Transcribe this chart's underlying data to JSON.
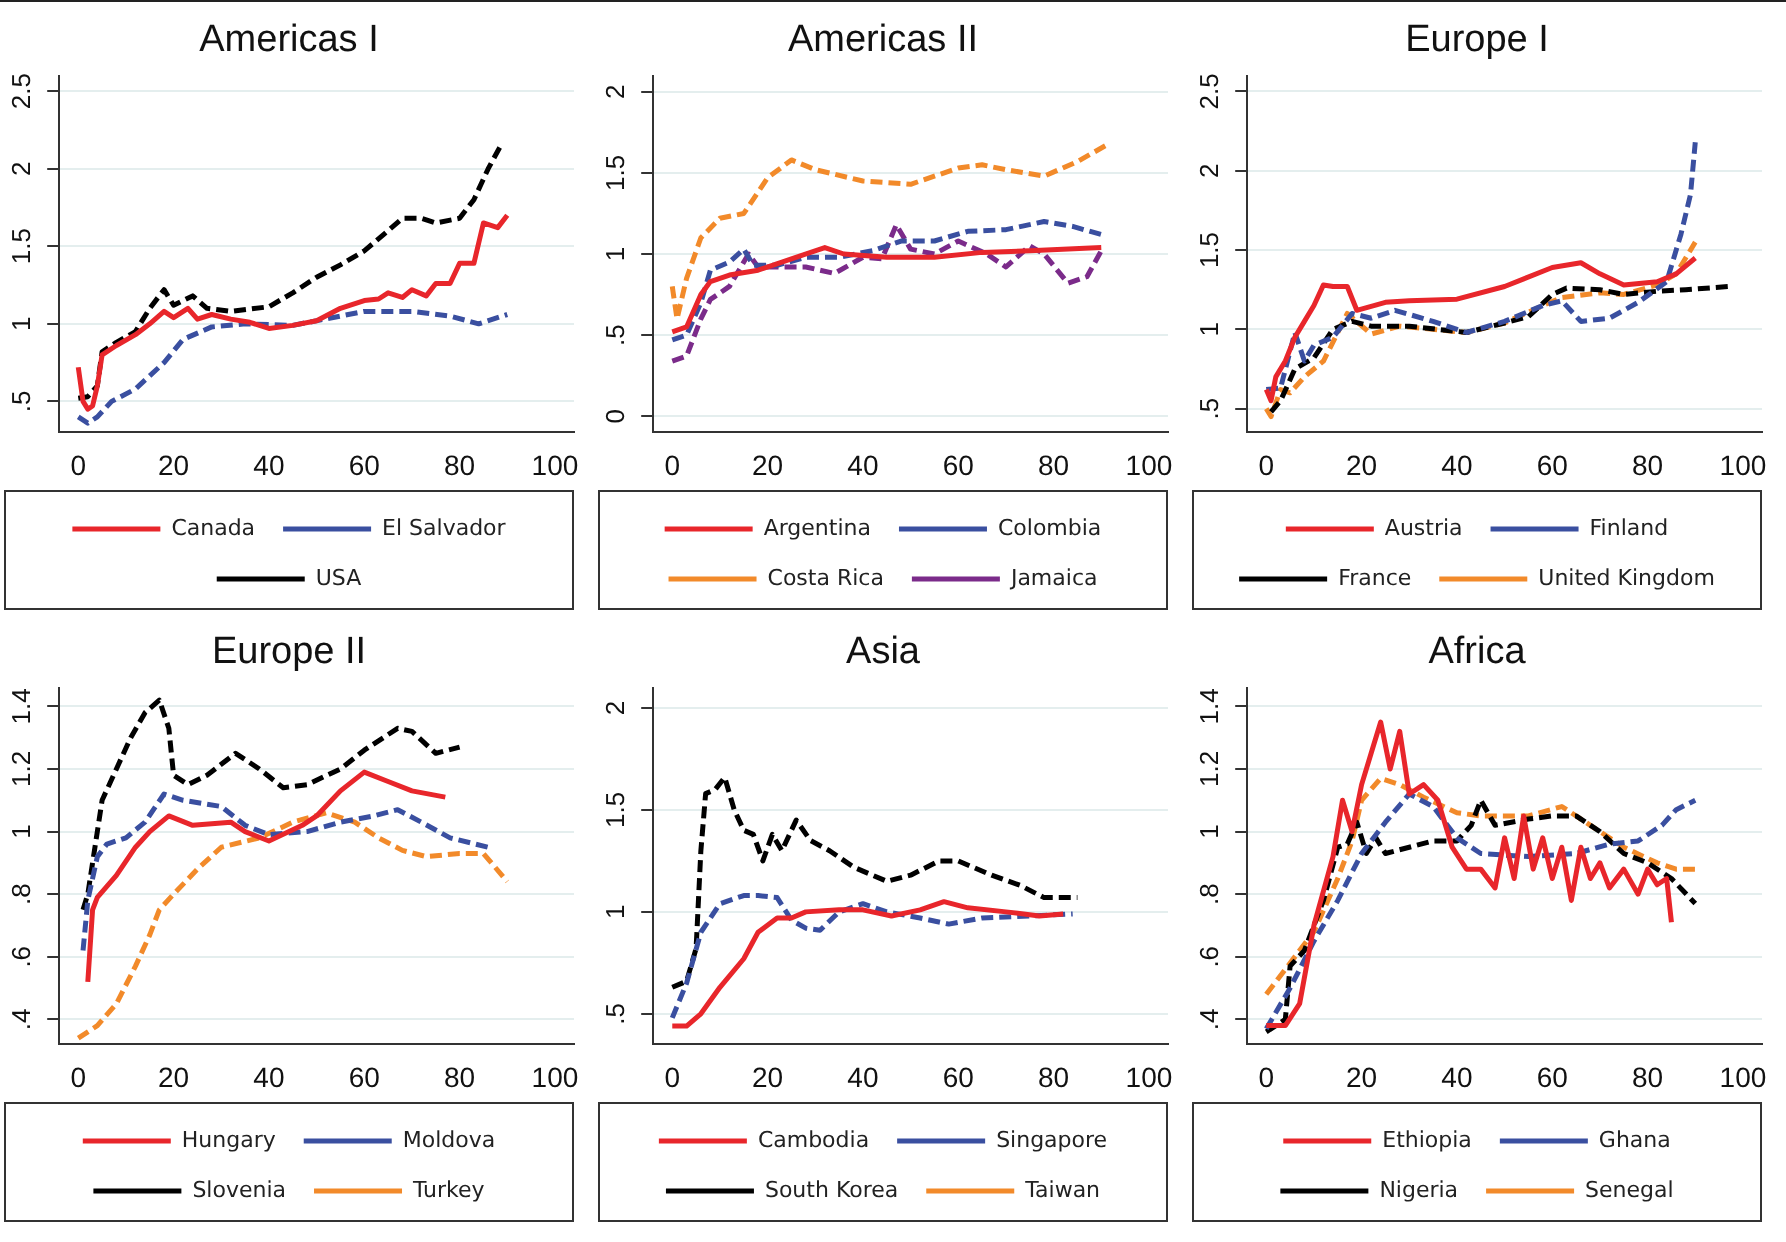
{
  "chart_data": [
    {
      "type": "line",
      "title": "Americas I",
      "xlim": [
        -4,
        104
      ],
      "xticks": [
        0,
        20,
        40,
        60,
        80,
        100
      ],
      "ylim": [
        0.3,
        2.6
      ],
      "yticks": [
        {
          "value": 0.5,
          "label": ".5"
        },
        1,
        1.5,
        2,
        2.5
      ],
      "grid": "y",
      "legend": "bottom",
      "marker": "none",
      "series": [
        {
          "name": "Canada",
          "color": "#e8262b",
          "line_style": "solid",
          "x": [
            0,
            1,
            2,
            3,
            4,
            5,
            8,
            12,
            15,
            18,
            20,
            23,
            25,
            28,
            32,
            36,
            40,
            45,
            50,
            55,
            60,
            63,
            65,
            68,
            70,
            73,
            75,
            78,
            80,
            83,
            85,
            88,
            90
          ],
          "values": [
            0.72,
            0.5,
            0.45,
            0.47,
            0.6,
            0.8,
            0.86,
            0.93,
            1.0,
            1.08,
            1.04,
            1.1,
            1.03,
            1.06,
            1.03,
            1.01,
            0.97,
            0.99,
            1.02,
            1.1,
            1.15,
            1.16,
            1.2,
            1.17,
            1.22,
            1.18,
            1.26,
            1.26,
            1.39,
            1.39,
            1.65,
            1.62,
            1.7
          ]
        },
        {
          "name": "El Salvador",
          "color": "#3a4fa0",
          "line_style": "dashed",
          "x": [
            0,
            2,
            4,
            7,
            12,
            18,
            22,
            28,
            35,
            45,
            55,
            60,
            70,
            78,
            84,
            90
          ],
          "values": [
            0.4,
            0.36,
            0.4,
            0.5,
            0.58,
            0.75,
            0.9,
            0.98,
            1.0,
            0.99,
            1.05,
            1.08,
            1.08,
            1.05,
            1.0,
            1.06
          ]
        },
        {
          "name": "USA",
          "color": "#000000",
          "line_style": "dashed",
          "x": [
            0,
            2,
            4,
            5,
            8,
            12,
            15,
            18,
            20,
            24,
            27,
            32,
            40,
            45,
            50,
            55,
            60,
            65,
            68,
            72,
            75,
            80,
            83,
            86,
            89
          ],
          "values": [
            0.52,
            0.53,
            0.6,
            0.82,
            0.88,
            0.95,
            1.1,
            1.22,
            1.12,
            1.18,
            1.1,
            1.08,
            1.11,
            1.2,
            1.3,
            1.38,
            1.47,
            1.6,
            1.68,
            1.68,
            1.65,
            1.68,
            1.8,
            2.0,
            2.17
          ]
        }
      ]
    },
    {
      "type": "line",
      "title": "Americas II",
      "xlim": [
        -4,
        104
      ],
      "xticks": [
        0,
        20,
        40,
        60,
        80,
        100
      ],
      "ylim": [
        -0.1,
        2.1
      ],
      "yticks": [
        0,
        {
          "value": 0.5,
          "label": ".5"
        },
        1,
        1.5,
        2
      ],
      "grid": "y",
      "legend": "bottom",
      "marker": "none",
      "series": [
        {
          "name": "Argentina",
          "color": "#e8262b",
          "line_style": "solid",
          "x": [
            0,
            3,
            6,
            8,
            12,
            18,
            25,
            32,
            36,
            45,
            55,
            65,
            75,
            90
          ],
          "values": [
            0.52,
            0.55,
            0.75,
            0.83,
            0.87,
            0.9,
            0.97,
            1.04,
            1.0,
            0.98,
            0.98,
            1.01,
            1.02,
            1.04
          ]
        },
        {
          "name": "Colombia",
          "color": "#3a4fa0",
          "line_style": "dashed",
          "x": [
            0,
            3,
            6,
            8,
            12,
            15,
            17,
            22,
            28,
            35,
            42,
            48,
            55,
            62,
            70,
            78,
            84,
            90
          ],
          "values": [
            0.47,
            0.5,
            0.7,
            0.9,
            0.95,
            1.03,
            0.93,
            0.93,
            0.98,
            0.98,
            1.02,
            1.08,
            1.08,
            1.14,
            1.15,
            1.2,
            1.17,
            1.12
          ]
        },
        {
          "name": "Costa Rica",
          "color": "#f28a2a",
          "line_style": "dashed",
          "x": [
            0,
            1,
            3,
            6,
            10,
            15,
            20,
            25,
            30,
            40,
            50,
            60,
            65,
            70,
            78,
            85,
            91
          ],
          "values": [
            0.8,
            0.6,
            0.85,
            1.1,
            1.22,
            1.25,
            1.47,
            1.58,
            1.52,
            1.45,
            1.43,
            1.53,
            1.55,
            1.52,
            1.48,
            1.57,
            1.67
          ]
        },
        {
          "name": "Jamaica",
          "color": "#7b2b8a",
          "line_style": "dashed",
          "x": [
            0,
            3,
            6,
            8,
            12,
            16,
            18,
            22,
            28,
            34,
            40,
            44,
            47,
            50,
            55,
            60,
            66,
            70,
            75,
            78,
            83,
            87,
            90
          ],
          "values": [
            0.34,
            0.37,
            0.6,
            0.72,
            0.8,
            1.0,
            0.92,
            0.92,
            0.92,
            0.88,
            0.98,
            0.97,
            1.18,
            1.03,
            1.0,
            1.08,
            1.0,
            0.92,
            1.05,
            1.0,
            0.82,
            0.86,
            1.02
          ]
        }
      ]
    },
    {
      "type": "line",
      "title": "Europe I",
      "xlim": [
        -4,
        104
      ],
      "xticks": [
        0,
        20,
        40,
        60,
        80,
        100
      ],
      "ylim": [
        0.35,
        2.6
      ],
      "yticks": [
        {
          "value": 0.5,
          "label": ".5"
        },
        1,
        1.5,
        2,
        2.5
      ],
      "grid": "y",
      "legend": "bottom",
      "marker": "none",
      "series": [
        {
          "name": "Austria",
          "color": "#e8262b",
          "line_style": "solid",
          "x": [
            0,
            1,
            2,
            4,
            6,
            8,
            10,
            12,
            14,
            17,
            19,
            25,
            30,
            40,
            50,
            60,
            66,
            70,
            75,
            82,
            86,
            90
          ],
          "values": [
            0.62,
            0.55,
            0.7,
            0.8,
            0.95,
            1.05,
            1.15,
            1.28,
            1.27,
            1.27,
            1.12,
            1.17,
            1.18,
            1.19,
            1.27,
            1.39,
            1.42,
            1.35,
            1.28,
            1.3,
            1.35,
            1.45
          ]
        },
        {
          "name": "Finland",
          "color": "#3a4fa0",
          "line_style": "dashed",
          "x": [
            0,
            3,
            6,
            8,
            10,
            14,
            18,
            22,
            27,
            35,
            42,
            50,
            58,
            62,
            66,
            72,
            78,
            84,
            87,
            89,
            90
          ],
          "values": [
            0.62,
            0.63,
            0.98,
            0.8,
            0.9,
            0.95,
            1.1,
            1.07,
            1.12,
            1.05,
            0.98,
            1.05,
            1.15,
            1.18,
            1.05,
            1.07,
            1.17,
            1.3,
            1.6,
            1.85,
            2.18
          ]
        },
        {
          "name": "France",
          "color": "#000000",
          "line_style": "dashed",
          "x": [
            1,
            3,
            6,
            10,
            14,
            18,
            22,
            30,
            42,
            50,
            55,
            60,
            63,
            70,
            75,
            82,
            88,
            97
          ],
          "values": [
            0.48,
            0.55,
            0.75,
            0.82,
            1.0,
            1.05,
            1.02,
            1.02,
            0.98,
            1.04,
            1.08,
            1.22,
            1.26,
            1.25,
            1.22,
            1.24,
            1.25,
            1.27
          ]
        },
        {
          "name": "United Kingdom",
          "color": "#f28a2a",
          "line_style": "dashed",
          "x": [
            0,
            1,
            3,
            5,
            8,
            12,
            17,
            22,
            28,
            35,
            42,
            50,
            58,
            62,
            70,
            75,
            82,
            86,
            90
          ],
          "values": [
            0.5,
            0.45,
            0.62,
            0.6,
            0.7,
            0.8,
            1.1,
            0.97,
            1.02,
            1.0,
            0.98,
            1.04,
            1.15,
            1.2,
            1.23,
            1.22,
            1.28,
            1.35,
            1.55
          ]
        }
      ]
    },
    {
      "type": "line",
      "title": "Europe II",
      "xlim": [
        -4,
        104
      ],
      "xticks": [
        0,
        20,
        40,
        60,
        80,
        100
      ],
      "ylim": [
        0.32,
        1.46
      ],
      "yticks": [
        {
          "value": 0.4,
          "label": ".4"
        },
        {
          "value": 0.6,
          "label": ".6"
        },
        {
          "value": 0.8,
          "label": ".8"
        },
        1,
        1.2,
        1.4
      ],
      "grid": "y",
      "legend": "bottom",
      "marker": "none",
      "series": [
        {
          "name": "Hungary",
          "color": "#e8262b",
          "line_style": "solid",
          "x": [
            2,
            3,
            4,
            8,
            12,
            15,
            19,
            24,
            32,
            35,
            40,
            47,
            50,
            55,
            60,
            65,
            70,
            77
          ],
          "values": [
            0.52,
            0.75,
            0.79,
            0.86,
            0.95,
            1.0,
            1.05,
            1.02,
            1.03,
            1.0,
            0.97,
            1.02,
            1.05,
            1.13,
            1.19,
            1.16,
            1.13,
            1.11
          ]
        },
        {
          "name": "Moldova",
          "color": "#3a4fa0",
          "line_style": "dashed",
          "x": [
            1,
            2,
            4,
            6,
            10,
            14,
            18,
            22,
            30,
            35,
            40,
            48,
            55,
            62,
            67,
            72,
            78,
            86
          ],
          "values": [
            0.62,
            0.78,
            0.92,
            0.96,
            0.98,
            1.03,
            1.12,
            1.1,
            1.08,
            1.02,
            0.99,
            1.0,
            1.03,
            1.05,
            1.07,
            1.03,
            0.98,
            0.95
          ]
        },
        {
          "name": "Slovenia",
          "color": "#000000",
          "line_style": "dashed",
          "x": [
            1,
            2,
            3,
            5,
            8,
            11,
            14,
            17,
            19,
            20,
            23,
            27,
            33,
            38,
            43,
            48,
            55,
            60,
            67,
            70,
            75,
            80
          ],
          "values": [
            0.75,
            0.8,
            0.9,
            1.1,
            1.2,
            1.3,
            1.38,
            1.42,
            1.33,
            1.18,
            1.15,
            1.18,
            1.25,
            1.2,
            1.14,
            1.15,
            1.2,
            1.26,
            1.33,
            1.32,
            1.25,
            1.27
          ]
        },
        {
          "name": "Turkey",
          "color": "#f28a2a",
          "line_style": "dashed",
          "x": [
            0,
            4,
            8,
            12,
            15,
            17,
            20,
            25,
            30,
            38,
            45,
            52,
            58,
            63,
            68,
            73,
            80,
            85,
            90
          ],
          "values": [
            0.34,
            0.38,
            0.45,
            0.57,
            0.67,
            0.75,
            0.8,
            0.88,
            0.95,
            0.98,
            1.03,
            1.06,
            1.03,
            0.98,
            0.94,
            0.92,
            0.93,
            0.93,
            0.84
          ]
        }
      ]
    },
    {
      "type": "line",
      "title": "Asia",
      "xlim": [
        -4,
        104
      ],
      "xticks": [
        0,
        20,
        40,
        60,
        80,
        100
      ],
      "ylim": [
        0.35,
        2.1
      ],
      "yticks": [
        {
          "value": 0.5,
          "label": ".5"
        },
        1,
        1.5,
        2
      ],
      "grid": "y",
      "legend": "bottom",
      "marker": "none",
      "series": [
        {
          "name": "Cambodia",
          "color": "#e8262b",
          "line_style": "solid",
          "x": [
            0,
            3,
            6,
            10,
            15,
            18,
            22,
            25,
            28,
            35,
            40,
            46,
            52,
            57,
            62,
            70,
            77,
            82
          ],
          "values": [
            0.44,
            0.44,
            0.5,
            0.63,
            0.77,
            0.9,
            0.97,
            0.97,
            1.0,
            1.01,
            1.01,
            0.98,
            1.01,
            1.05,
            1.02,
            1.0,
            0.98,
            0.99
          ]
        },
        {
          "name": "Singapore",
          "color": "#3a4fa0",
          "line_style": "dashed",
          "x": [
            0,
            3,
            6,
            10,
            15,
            18,
            22,
            25,
            28,
            31,
            35,
            40,
            45,
            52,
            58,
            65,
            75,
            84
          ],
          "values": [
            0.48,
            0.65,
            0.9,
            1.04,
            1.08,
            1.08,
            1.07,
            0.96,
            0.92,
            0.91,
            1.0,
            1.04,
            1.0,
            0.97,
            0.94,
            0.97,
            0.98,
            0.99
          ]
        },
        {
          "name": "South Korea",
          "color": "#000000",
          "line_style": "dashed",
          "x": [
            0,
            3,
            5,
            6,
            7,
            9,
            11,
            13,
            15,
            17,
            19,
            21,
            23,
            26,
            29,
            33,
            38,
            45,
            50,
            56,
            60,
            67,
            73,
            78,
            85
          ],
          "values": [
            0.63,
            0.66,
            0.82,
            1.3,
            1.58,
            1.6,
            1.66,
            1.5,
            1.4,
            1.38,
            1.25,
            1.38,
            1.3,
            1.45,
            1.35,
            1.3,
            1.22,
            1.15,
            1.18,
            1.25,
            1.25,
            1.18,
            1.13,
            1.07,
            1.07
          ]
        },
        {
          "name": "Taiwan",
          "color": "#f28a2a",
          "line_style": "dashed"
        }
      ]
    },
    {
      "type": "line",
      "title": "Africa",
      "xlim": [
        -4,
        104
      ],
      "xticks": [
        0,
        20,
        40,
        60,
        80,
        100
      ],
      "ylim": [
        0.32,
        1.46
      ],
      "yticks": [
        {
          "value": 0.4,
          "label": ".4"
        },
        {
          "value": 0.6,
          "label": ".6"
        },
        {
          "value": 0.8,
          "label": ".8"
        },
        1,
        1.2,
        1.4
      ],
      "grid": "y",
      "legend": "bottom",
      "marker": "none",
      "series": [
        {
          "name": "Ethiopia",
          "color": "#e8262b",
          "line_style": "solid",
          "x": [
            0,
            4,
            7,
            10,
            14,
            16,
            18,
            20,
            22,
            24,
            26,
            28,
            30,
            33,
            36,
            39,
            42,
            45,
            48,
            50,
            52,
            54,
            56,
            58,
            60,
            62,
            64,
            66,
            68,
            70,
            72,
            75,
            78,
            80,
            82,
            84,
            85
          ],
          "values": [
            0.38,
            0.38,
            0.45,
            0.7,
            0.92,
            1.1,
            1.0,
            1.15,
            1.25,
            1.35,
            1.2,
            1.32,
            1.12,
            1.15,
            1.1,
            0.95,
            0.88,
            0.88,
            0.82,
            0.98,
            0.85,
            1.05,
            0.88,
            0.98,
            0.85,
            0.95,
            0.78,
            0.95,
            0.85,
            0.9,
            0.82,
            0.88,
            0.8,
            0.88,
            0.83,
            0.85,
            0.71
          ]
        },
        {
          "name": "Ghana",
          "color": "#3a4fa0",
          "line_style": "dashed",
          "x": [
            0,
            5,
            10,
            15,
            20,
            25,
            30,
            35,
            40,
            45,
            55,
            65,
            72,
            78,
            83,
            86,
            90
          ],
          "values": [
            0.37,
            0.5,
            0.65,
            0.78,
            0.93,
            1.03,
            1.12,
            1.08,
            0.98,
            0.93,
            0.92,
            0.93,
            0.96,
            0.97,
            1.02,
            1.07,
            1.1
          ]
        },
        {
          "name": "Nigeria",
          "color": "#000000",
          "line_style": "dashed",
          "x": [
            0,
            4,
            5,
            8,
            12,
            15,
            17,
            19,
            21,
            23,
            25,
            30,
            35,
            40,
            43,
            45,
            48,
            55,
            60,
            65,
            70,
            75,
            80,
            85,
            90
          ],
          "values": [
            0.36,
            0.4,
            0.57,
            0.62,
            0.78,
            0.95,
            0.96,
            1.03,
            0.93,
            0.98,
            0.93,
            0.95,
            0.97,
            0.97,
            1.02,
            1.1,
            1.02,
            1.04,
            1.05,
            1.05,
            1.0,
            0.93,
            0.9,
            0.85,
            0.77
          ]
        },
        {
          "name": "Senegal",
          "color": "#f28a2a",
          "line_style": "dashed",
          "x": [
            0,
            5,
            10,
            15,
            18,
            20,
            24,
            28,
            33,
            40,
            45,
            55,
            62,
            68,
            75,
            82,
            86,
            90
          ],
          "values": [
            0.48,
            0.58,
            0.68,
            0.85,
            0.97,
            1.1,
            1.17,
            1.15,
            1.11,
            1.06,
            1.05,
            1.05,
            1.08,
            1.02,
            0.95,
            0.9,
            0.88,
            0.88
          ]
        }
      ]
    }
  ]
}
